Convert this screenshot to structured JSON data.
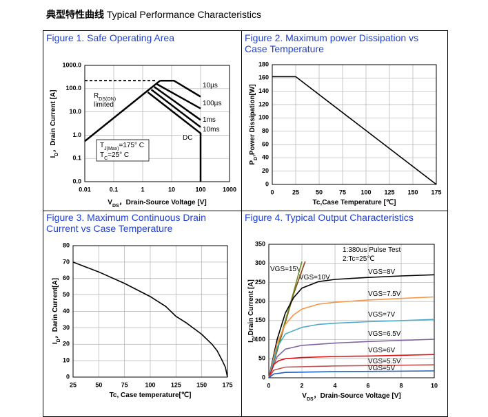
{
  "header": {
    "title_cn": "典型特性曲线",
    "title_en": "Typical Performance Characteristics"
  },
  "chart_data": [
    {
      "type": "line",
      "title": "Figure 1. Safe Operating Area",
      "xlabel": [
        "V",
        "DS",
        "，Drain-Source Voltage [V]"
      ],
      "ylabel": [
        "I",
        "D",
        "，Drain Current [A]"
      ],
      "xlog": true,
      "ylog": true,
      "grid": true,
      "color": "#000000",
      "xlim": [
        0.01,
        1000
      ],
      "xticks": [
        0.01,
        0.1,
        1,
        10,
        100,
        1000
      ],
      "ylim": [
        0.01,
        1000
      ],
      "yticks": [
        {
          "value": 0.01,
          "label": "0.0"
        },
        0.1,
        {
          "value": 1,
          "label": "1.0"
        },
        {
          "value": 10,
          "label": "10.0"
        },
        {
          "value": 100,
          "label": "100.0"
        },
        {
          "value": 1000,
          "label": "1000.0"
        }
      ],
      "series": [
        {
          "x": [
            0.01,
            4
          ],
          "values": [
            0.55,
            220
          ]
        },
        {
          "x": [
            0.01,
            3
          ],
          "values": [
            220,
            220
          ],
          "dash": true
        },
        {
          "name": "10µs",
          "x": [
            4,
            12,
            100
          ],
          "values": [
            220,
            220,
            45
          ]
        },
        {
          "name": "100µs",
          "x": [
            3,
            100
          ],
          "values": [
            160,
            14
          ]
        },
        {
          "name": "1ms",
          "x": [
            2.5,
            100
          ],
          "values": [
            120,
            4.5
          ]
        },
        {
          "name": "10ms",
          "x": [
            2,
            100
          ],
          "values": [
            90,
            2.2
          ]
        },
        {
          "name": "DC",
          "x": [
            1.5,
            100,
            100
          ],
          "values": [
            70,
            1.2,
            0.01
          ]
        }
      ],
      "annotations": [
        {
          "parts": [
            "R",
            "DS(ON)"
          ]
        },
        {
          "parts": [
            "limited"
          ]
        },
        {
          "parts": [
            "T",
            "J(Max)",
            "=175° C"
          ]
        },
        {
          "parts": [
            "T",
            "C",
            "=25° C"
          ]
        }
      ]
    },
    {
      "type": "line",
      "title": "Figure 2. Maximum power Dissipation vs Case Temperature",
      "xlabel": [
        "Tc,Case Temperature [℃]"
      ],
      "ylabel": [
        "P",
        "D",
        ",Power Dissipation[W]"
      ],
      "grid": true,
      "color": "#000000",
      "xlim": [
        0,
        175
      ],
      "xticks": [
        0,
        25,
        50,
        75,
        100,
        125,
        150,
        175
      ],
      "ylim": [
        0,
        180
      ],
      "yticks": [
        0,
        20,
        40,
        60,
        80,
        100,
        120,
        140,
        160,
        180
      ],
      "series": [
        {
          "x": [
            0,
            25,
            175
          ],
          "values": [
            162,
            162,
            0
          ]
        }
      ]
    },
    {
      "type": "line",
      "title": "Figure 3. Maximum Continuous Drain Current vs Case Temperature",
      "xlabel": [
        "Tc, Case temperature[℃]"
      ],
      "ylabel": [
        "I",
        "D",
        "，Darin Current[A]"
      ],
      "grid": true,
      "color": "#000000",
      "xlim": [
        25,
        175
      ],
      "xticks": [
        25,
        50,
        75,
        100,
        125,
        150,
        175
      ],
      "ylim": [
        0,
        80
      ],
      "yticks": [
        0,
        10,
        20,
        30,
        40,
        50,
        60,
        70,
        80
      ],
      "series": [
        {
          "x": [
            25,
            50,
            75,
            100,
            115,
            125,
            135,
            150,
            160,
            165,
            170,
            173,
            175
          ],
          "values": [
            70,
            64,
            57,
            49,
            43,
            37,
            33,
            26,
            20,
            16,
            10,
            6,
            0
          ]
        }
      ]
    },
    {
      "type": "line",
      "title": "Figure 4. Typical Output Characteristics",
      "xlabel": [
        "V",
        "DS",
        "，Drain-Source Voltage [V]"
      ],
      "ylabel": [
        "I",
        "D",
        ",Drain Current [A]"
      ],
      "grid": true,
      "xlim": [
        0,
        10
      ],
      "xticks": [
        0,
        2,
        4,
        6,
        8,
        10
      ],
      "ylim": [
        0,
        350
      ],
      "yticks": [
        0,
        50,
        100,
        150,
        200,
        250,
        300,
        350
      ],
      "series": [
        {
          "name": "VGS=15V",
          "color": "#8b4513",
          "x": [
            0,
            0.5,
            1,
            1.5,
            2.2
          ],
          "values": [
            0,
            70,
            145,
            220,
            305
          ]
        },
        {
          "name": "VGS=10V",
          "color": "#6b8e23",
          "x": [
            0,
            0.5,
            1,
            1.5,
            2.0
          ],
          "values": [
            0,
            75,
            150,
            225,
            305
          ]
        },
        {
          "name": "VGS=8V",
          "color": "#000000",
          "x": [
            0,
            0.5,
            1,
            1.5,
            2,
            3,
            4,
            6,
            8,
            10
          ],
          "values": [
            0,
            100,
            170,
            210,
            235,
            252,
            258,
            263,
            267,
            270
          ]
        },
        {
          "name": "VGS=7.5V",
          "color": "#f79646",
          "x": [
            0,
            0.5,
            1,
            1.5,
            2,
            3,
            4,
            6,
            8,
            10
          ],
          "values": [
            0,
            90,
            140,
            165,
            180,
            193,
            198,
            204,
            208,
            212
          ]
        },
        {
          "name": "VGS=7V",
          "color": "#4bacc6",
          "x": [
            0,
            0.5,
            1,
            2,
            3,
            4,
            6,
            8,
            10
          ],
          "values": [
            0,
            80,
            115,
            132,
            140,
            143,
            147,
            150,
            153
          ]
        },
        {
          "name": "VGS=6.5V",
          "color": "#8064a2",
          "x": [
            0,
            0.5,
            1,
            2,
            4,
            6,
            8,
            10
          ],
          "values": [
            0,
            55,
            75,
            85,
            91,
            95,
            98,
            101
          ]
        },
        {
          "name": "VGS=6V",
          "color": "#e01010",
          "x": [
            0,
            0.3,
            0.6,
            1,
            2,
            4,
            6,
            8,
            10
          ],
          "values": [
            0,
            35,
            45,
            50,
            53,
            56,
            57,
            59,
            61
          ]
        },
        {
          "name": "VGS=5.5V",
          "color": "#c0504d",
          "x": [
            0,
            0.3,
            1,
            4,
            10
          ],
          "values": [
            0,
            20,
            28,
            31,
            34
          ]
        },
        {
          "name": "VGS=5V",
          "color": "#1f5fbf",
          "x": [
            0,
            0.3,
            1,
            4,
            10
          ],
          "values": [
            0,
            10,
            14,
            16,
            18
          ]
        }
      ],
      "annotations": [
        {
          "parts": [
            "1:380us Pulse Test"
          ]
        },
        {
          "parts": [
            "2:Tc=25℃"
          ]
        }
      ]
    }
  ]
}
